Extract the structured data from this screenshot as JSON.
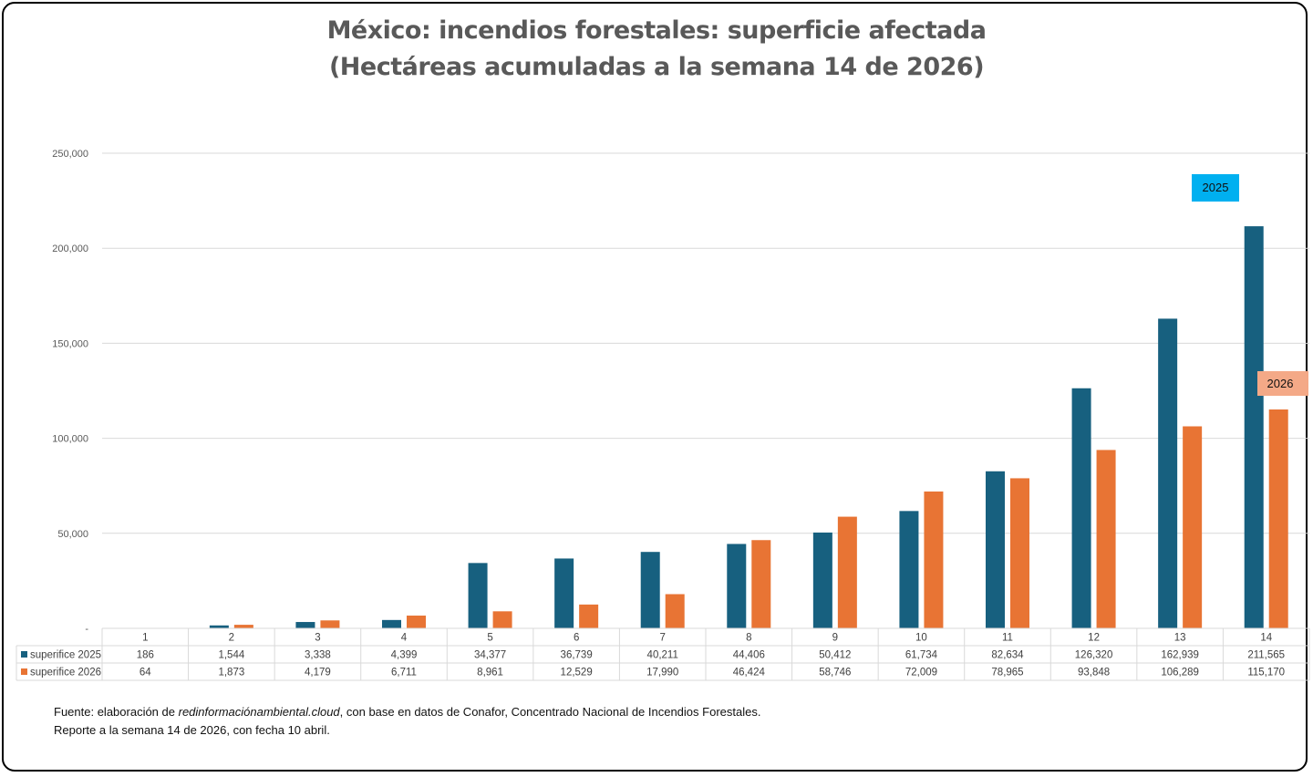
{
  "title": {
    "line1": "México: incendios forestales: superficie afectada",
    "line2": "(Hectáreas acumuladas a la semana 14 de 2026)"
  },
  "colors": {
    "series_2025": "#17607f",
    "series_2026": "#e87434",
    "tag_2025": "#00b0f0",
    "tag_2026": "#f4a987",
    "grid": "#d9d9d9",
    "title": "#595959"
  },
  "annotations": {
    "tag_2025": "2025",
    "tag_2026": "2026"
  },
  "footer": {
    "line1_prefix": "Fuente: elaboración de ",
    "line1_site": "redinformaciónambiental.cloud",
    "line1_suffix": ", con base en datos de Conafor, Concentrado Nacional de Incendios Forestales.",
    "line2": "Reporte a la semana 14 de 2026, con fecha 10 abril."
  },
  "chart_data": {
    "type": "bar",
    "title": "México: incendios forestales: superficie afectada (Hectáreas acumuladas a la semana 14 de 2026)",
    "xlabel": "",
    "ylabel": "",
    "categories": [
      "1",
      "2",
      "3",
      "4",
      "5",
      "6",
      "7",
      "8",
      "9",
      "10",
      "11",
      "12",
      "13",
      "14"
    ],
    "series": [
      {
        "name": "superifice 2025",
        "values": [
          186,
          1544,
          3338,
          4399,
          34377,
          36739,
          40211,
          44406,
          50412,
          61734,
          82634,
          126320,
          162939,
          211565
        ]
      },
      {
        "name": "superifice 2026",
        "values": [
          64,
          1873,
          4179,
          6711,
          8961,
          12529,
          17990,
          46424,
          58746,
          72009,
          78965,
          93848,
          106289,
          115170
        ]
      }
    ],
    "ylim": [
      0,
      250000
    ],
    "yticks": [
      0,
      50000,
      100000,
      150000,
      200000,
      250000
    ],
    "ytick_labels": [
      "-",
      "50,000",
      "100,000",
      "150,000",
      "200,000",
      "250,000"
    ],
    "grid": true,
    "data_table": true,
    "legend_placement": "data-table-left"
  }
}
